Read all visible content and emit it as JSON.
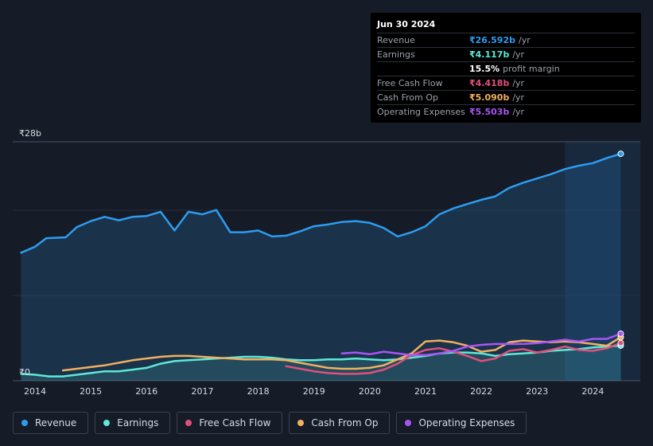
{
  "tooltip": {
    "date": "Jun 30 2024",
    "rows": [
      {
        "label": "Revenue",
        "value": "₹26.592b",
        "unit": "/yr",
        "color": "#2d9cf0"
      },
      {
        "label": "Earnings",
        "value": "₹4.117b",
        "unit": "/yr",
        "color": "#5ee8d6"
      },
      {
        "label": "",
        "value": "15.5%",
        "unit": "profit margin",
        "color": "#ffffff"
      },
      {
        "label": "Free Cash Flow",
        "value": "₹4.418b",
        "unit": "/yr",
        "color": "#e0507d"
      },
      {
        "label": "Cash From Op",
        "value": "₹5.090b",
        "unit": "/yr",
        "color": "#f0b060"
      },
      {
        "label": "Operating Expenses",
        "value": "₹5.503b",
        "unit": "/yr",
        "color": "#a855f7"
      }
    ]
  },
  "chart_data": {
    "type": "line",
    "ylim": [
      0,
      28
    ],
    "y_ticks": [
      {
        "value": 28,
        "label": "₹28b"
      },
      {
        "value": 0,
        "label": "₹0"
      }
    ],
    "x_ticks": [
      "2014",
      "2015",
      "2016",
      "2017",
      "2018",
      "2019",
      "2020",
      "2021",
      "2022",
      "2023",
      "2024"
    ],
    "xlim": [
      2013.6,
      2024.85
    ],
    "highlight_start": 2023.5,
    "series": [
      {
        "name": "Revenue",
        "color": "#2d9cf0",
        "fill": true,
        "points": [
          [
            2013.75,
            15.0
          ],
          [
            2014.0,
            15.7
          ],
          [
            2014.2,
            16.7
          ],
          [
            2014.55,
            16.8
          ],
          [
            2014.75,
            18.0
          ],
          [
            2015.0,
            18.7
          ],
          [
            2015.25,
            19.2
          ],
          [
            2015.5,
            18.8
          ],
          [
            2015.75,
            19.2
          ],
          [
            2016.0,
            19.3
          ],
          [
            2016.25,
            19.8
          ],
          [
            2016.5,
            17.6
          ],
          [
            2016.75,
            19.8
          ],
          [
            2017.0,
            19.5
          ],
          [
            2017.25,
            20.0
          ],
          [
            2017.5,
            17.4
          ],
          [
            2017.75,
            17.4
          ],
          [
            2018.0,
            17.6
          ],
          [
            2018.25,
            16.9
          ],
          [
            2018.5,
            17.0
          ],
          [
            2018.75,
            17.5
          ],
          [
            2019.0,
            18.1
          ],
          [
            2019.25,
            18.3
          ],
          [
            2019.5,
            18.6
          ],
          [
            2019.75,
            18.7
          ],
          [
            2020.0,
            18.5
          ],
          [
            2020.25,
            17.9
          ],
          [
            2020.5,
            16.9
          ],
          [
            2020.75,
            17.4
          ],
          [
            2021.0,
            18.1
          ],
          [
            2021.25,
            19.5
          ],
          [
            2021.5,
            20.2
          ],
          [
            2021.75,
            20.7
          ],
          [
            2022.0,
            21.2
          ],
          [
            2022.25,
            21.6
          ],
          [
            2022.5,
            22.6
          ],
          [
            2022.75,
            23.2
          ],
          [
            2023.0,
            23.7
          ],
          [
            2023.25,
            24.2
          ],
          [
            2023.5,
            24.8
          ],
          [
            2023.75,
            25.2
          ],
          [
            2024.0,
            25.5
          ],
          [
            2024.25,
            26.1
          ],
          [
            2024.5,
            26.592
          ]
        ]
      },
      {
        "name": "Earnings",
        "color": "#5ee8d6",
        "fill": true,
        "points": [
          [
            2013.75,
            0.8
          ],
          [
            2014.0,
            0.7
          ],
          [
            2014.25,
            0.5
          ],
          [
            2014.5,
            0.5
          ],
          [
            2014.75,
            0.7
          ],
          [
            2015.0,
            0.9
          ],
          [
            2015.25,
            1.1
          ],
          [
            2015.5,
            1.1
          ],
          [
            2015.75,
            1.3
          ],
          [
            2016.0,
            1.5
          ],
          [
            2016.25,
            2.0
          ],
          [
            2016.5,
            2.3
          ],
          [
            2016.75,
            2.4
          ],
          [
            2017.0,
            2.5
          ],
          [
            2017.25,
            2.6
          ],
          [
            2017.5,
            2.7
          ],
          [
            2017.75,
            2.8
          ],
          [
            2018.0,
            2.8
          ],
          [
            2018.25,
            2.7
          ],
          [
            2018.5,
            2.5
          ],
          [
            2018.75,
            2.4
          ],
          [
            2019.0,
            2.4
          ],
          [
            2019.25,
            2.5
          ],
          [
            2019.5,
            2.5
          ],
          [
            2019.75,
            2.6
          ],
          [
            2020.0,
            2.5
          ],
          [
            2020.25,
            2.4
          ],
          [
            2020.5,
            2.5
          ],
          [
            2020.75,
            2.7
          ],
          [
            2021.0,
            2.9
          ],
          [
            2021.25,
            3.2
          ],
          [
            2021.5,
            3.3
          ],
          [
            2021.75,
            3.3
          ],
          [
            2022.0,
            3.2
          ],
          [
            2022.25,
            2.9
          ],
          [
            2022.5,
            3.1
          ],
          [
            2022.75,
            3.2
          ],
          [
            2023.0,
            3.3
          ],
          [
            2023.25,
            3.5
          ],
          [
            2023.5,
            3.6
          ],
          [
            2023.75,
            3.7
          ],
          [
            2024.0,
            3.9
          ],
          [
            2024.25,
            4.0
          ],
          [
            2024.5,
            4.117
          ]
        ]
      },
      {
        "name": "Free Cash Flow",
        "color": "#e0507d",
        "fill": false,
        "points": [
          [
            2018.5,
            1.7
          ],
          [
            2018.75,
            1.4
          ],
          [
            2019.0,
            1.1
          ],
          [
            2019.25,
            0.9
          ],
          [
            2019.5,
            0.8
          ],
          [
            2019.75,
            0.8
          ],
          [
            2020.0,
            0.9
          ],
          [
            2020.25,
            1.3
          ],
          [
            2020.5,
            2.0
          ],
          [
            2020.75,
            3.0
          ],
          [
            2021.0,
            3.6
          ],
          [
            2021.25,
            3.8
          ],
          [
            2021.5,
            3.4
          ],
          [
            2021.75,
            2.9
          ],
          [
            2022.0,
            2.3
          ],
          [
            2022.25,
            2.6
          ],
          [
            2022.5,
            3.5
          ],
          [
            2022.75,
            3.7
          ],
          [
            2023.0,
            3.3
          ],
          [
            2023.25,
            3.6
          ],
          [
            2023.5,
            4.0
          ],
          [
            2023.75,
            3.6
          ],
          [
            2024.0,
            3.5
          ],
          [
            2024.25,
            3.8
          ],
          [
            2024.5,
            4.418
          ]
        ]
      },
      {
        "name": "Cash From Op",
        "color": "#f0b060",
        "fill": false,
        "points": [
          [
            2014.5,
            1.2
          ],
          [
            2014.75,
            1.4
          ],
          [
            2015.0,
            1.6
          ],
          [
            2015.25,
            1.8
          ],
          [
            2015.5,
            2.1
          ],
          [
            2015.75,
            2.4
          ],
          [
            2016.0,
            2.6
          ],
          [
            2016.25,
            2.8
          ],
          [
            2016.5,
            2.9
          ],
          [
            2016.75,
            2.9
          ],
          [
            2017.0,
            2.8
          ],
          [
            2017.25,
            2.7
          ],
          [
            2017.5,
            2.6
          ],
          [
            2017.75,
            2.5
          ],
          [
            2018.0,
            2.5
          ],
          [
            2018.25,
            2.5
          ],
          [
            2018.5,
            2.4
          ],
          [
            2018.75,
            2.1
          ],
          [
            2019.0,
            1.8
          ],
          [
            2019.25,
            1.5
          ],
          [
            2019.5,
            1.4
          ],
          [
            2019.75,
            1.4
          ],
          [
            2020.0,
            1.5
          ],
          [
            2020.25,
            1.8
          ],
          [
            2020.5,
            2.5
          ],
          [
            2020.75,
            3.2
          ],
          [
            2021.0,
            4.6
          ],
          [
            2021.25,
            4.7
          ],
          [
            2021.5,
            4.5
          ],
          [
            2021.75,
            4.1
          ],
          [
            2022.0,
            3.4
          ],
          [
            2022.25,
            3.6
          ],
          [
            2022.5,
            4.5
          ],
          [
            2022.75,
            4.7
          ],
          [
            2023.0,
            4.6
          ],
          [
            2023.25,
            4.5
          ],
          [
            2023.5,
            4.6
          ],
          [
            2023.75,
            4.5
          ],
          [
            2024.0,
            4.3
          ],
          [
            2024.25,
            4.1
          ],
          [
            2024.5,
            5.09
          ]
        ]
      },
      {
        "name": "Operating Expenses",
        "color": "#a855f7",
        "fill": false,
        "points": [
          [
            2019.5,
            3.2
          ],
          [
            2019.75,
            3.3
          ],
          [
            2020.0,
            3.1
          ],
          [
            2020.25,
            3.4
          ],
          [
            2020.5,
            3.2
          ],
          [
            2020.75,
            3.0
          ],
          [
            2021.0,
            3.0
          ],
          [
            2021.25,
            3.2
          ],
          [
            2021.5,
            3.5
          ],
          [
            2021.75,
            4.0
          ],
          [
            2022.0,
            4.2
          ],
          [
            2022.25,
            4.3
          ],
          [
            2022.5,
            4.3
          ],
          [
            2022.75,
            4.3
          ],
          [
            2023.0,
            4.4
          ],
          [
            2023.25,
            4.6
          ],
          [
            2023.5,
            4.8
          ],
          [
            2023.75,
            4.6
          ],
          [
            2024.0,
            4.9
          ],
          [
            2024.25,
            4.9
          ],
          [
            2024.5,
            5.503
          ]
        ]
      }
    ]
  },
  "legend": [
    {
      "label": "Revenue",
      "color": "#2d9cf0"
    },
    {
      "label": "Earnings",
      "color": "#5ee8d6"
    },
    {
      "label": "Free Cash Flow",
      "color": "#e0507d"
    },
    {
      "label": "Cash From Op",
      "color": "#f0b060"
    },
    {
      "label": "Operating Expenses",
      "color": "#a855f7"
    }
  ]
}
